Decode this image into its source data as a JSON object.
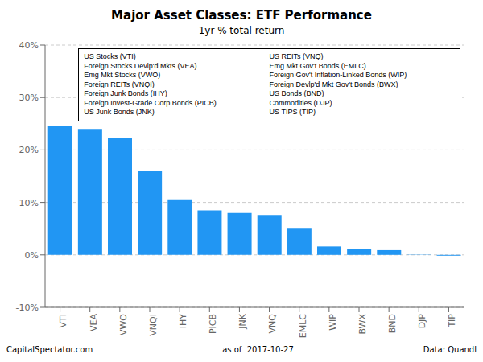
{
  "chart_data": {
    "type": "bar",
    "title": "Major Asset Classes: ETF Performance",
    "subtitle": "1yr % total return",
    "categories": [
      "VTI",
      "VEA",
      "VWO",
      "VNQI",
      "IHY",
      "PICB",
      "JNK",
      "VNQ",
      "EMLC",
      "WIP",
      "BWX",
      "BND",
      "DJP",
      "TIP"
    ],
    "values": [
      24.5,
      24.0,
      22.2,
      16.0,
      10.6,
      8.5,
      8.0,
      7.6,
      5.0,
      1.6,
      1.1,
      0.9,
      0.05,
      -0.15
    ],
    "color": "#2196F3",
    "ylim": [
      -10,
      40
    ],
    "yticks": [
      {
        "value": -10,
        "label": "-10%"
      },
      {
        "value": 0,
        "label": "0%"
      },
      {
        "value": 10,
        "label": "10%"
      },
      {
        "value": 20,
        "label": "20%"
      },
      {
        "value": 30,
        "label": "30%"
      },
      {
        "value": 40,
        "label": "40%"
      }
    ],
    "grid": true,
    "annotations": [
      "US Stocks (VTI)",
      "Foreign Stocks Devlp'd Mkts (VEA)",
      "Emg Mkt Stocks (VWO)",
      "Foreign REITs (VNQI)",
      "Foreign Junk Bonds (IHY)",
      "Foreign Invest-Grade Corp Bonds (PICB)",
      "US Junk Bonds (JNK)",
      "US REITs (VNQ)",
      "Emg Mkt Gov't Bonds (EMLC)",
      "Foreign Gov't Inflation-Linked Bonds (WIP)",
      "Foreign Devlp'd Mkt Gov't Bonds (BWX)",
      "US Bonds (BND)",
      "Commodities (DJP)",
      "US TIPS (TIP)",
      "CapitalSpectator.com",
      "as of  2017-10-27",
      "Data: Quandl"
    ]
  }
}
